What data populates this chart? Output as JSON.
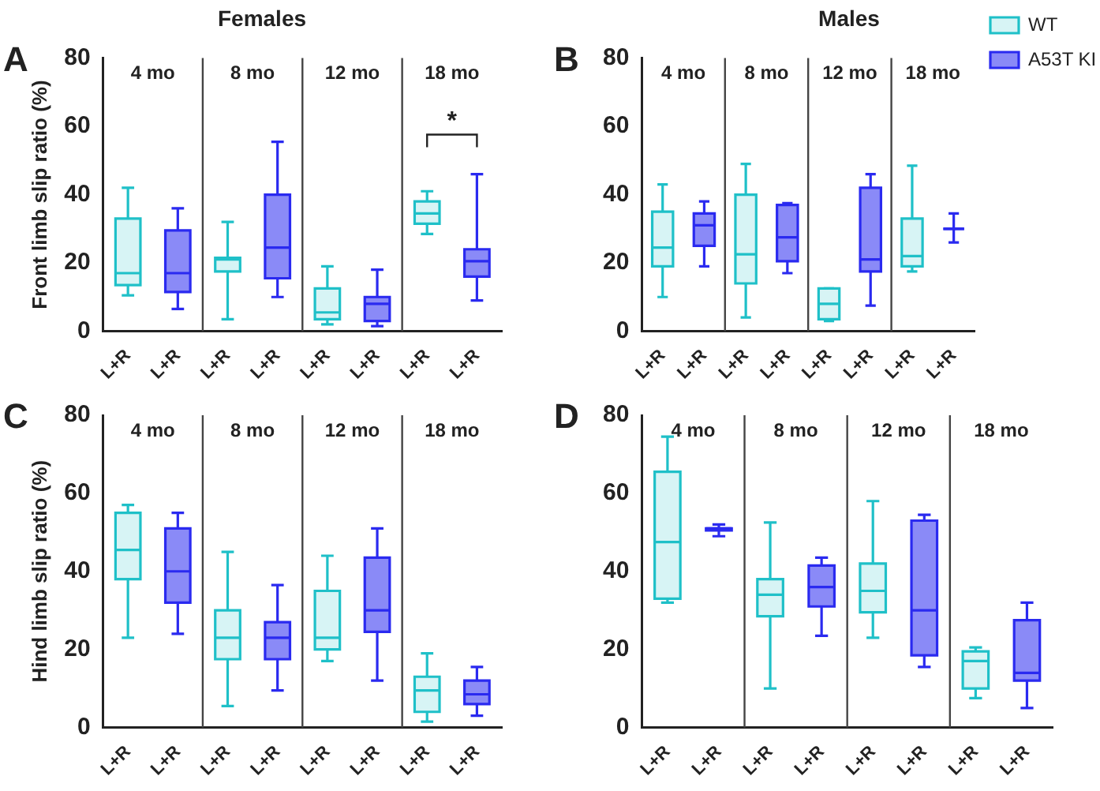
{
  "chart_data": [
    {
      "type": "box",
      "title": "Females",
      "ylabel": "Front limb slip ratio (%)",
      "categories": [
        "L+R",
        "L+R",
        "L+R",
        "L+R",
        "L+R",
        "L+R",
        "L+R",
        "L+R"
      ],
      "ylim": [
        0,
        80
      ],
      "yticks": [
        0,
        20,
        40,
        60,
        80
      ],
      "grid": false,
      "legend": false,
      "annotations": [
        "A",
        "4 mo",
        "8 mo",
        "12 mo",
        "18 mo",
        "*"
      ],
      "series": [
        {
          "color": "#1fc0c8",
          "boxes": [
            {
              "low": 10.5,
              "q1": 13.5,
              "median": 17,
              "q3": 33,
              "high": 42
            },
            null,
            {
              "low": 3.5,
              "q1": 17.5,
              "median": 21,
              "q3": 21.5,
              "high": 32
            },
            null,
            {
              "low": 2,
              "q1": 3.5,
              "median": 5.5,
              "q3": 12.5,
              "high": 19
            },
            null,
            {
              "low": 28.5,
              "q1": 31.5,
              "median": 34.5,
              "q3": 38,
              "high": 41
            },
            null
          ]
        },
        {
          "color": "#2a2af0",
          "boxes": [
            null,
            {
              "low": 6.5,
              "q1": 11.5,
              "median": 17,
              "q3": 29.5,
              "high": 36
            },
            null,
            {
              "low": 10,
              "q1": 15.5,
              "median": 24.5,
              "q3": 40,
              "high": 55.5
            },
            null,
            {
              "low": 1.5,
              "q1": 3,
              "median": 8,
              "q3": 10,
              "high": 18
            },
            null,
            {
              "low": 9,
              "q1": 16,
              "median": 20.5,
              "q3": 24,
              "high": 46
            }
          ]
        }
      ]
    },
    {
      "type": "box",
      "title": "Males",
      "categories": [
        "L+R",
        "L+R",
        "L+R",
        "L+R",
        "L+R",
        "L+R",
        "L+R",
        "L+R"
      ],
      "ylim": [
        0,
        80
      ],
      "yticks": [
        0,
        20,
        40,
        60,
        80
      ],
      "grid": false,
      "legend": "right",
      "annotations": [
        "B",
        "4 mo",
        "8 mo",
        "12 mo",
        "18 mo"
      ],
      "series": [
        {
          "name": "WT",
          "color": "#1fc0c8",
          "boxes": [
            {
              "low": 10,
              "q1": 19,
              "median": 24.5,
              "q3": 35,
              "high": 43
            },
            null,
            {
              "low": 4,
              "q1": 14,
              "median": 22.5,
              "q3": 40,
              "high": 49
            },
            null,
            {
              "low": 3,
              "q1": 3.5,
              "median": 8,
              "q3": 12.5,
              "high": 12.5
            },
            null,
            {
              "low": 17.5,
              "q1": 19,
              "median": 22,
              "q3": 33,
              "high": 48.5
            },
            null
          ]
        },
        {
          "name": "A53T KI",
          "color": "#2a2af0",
          "boxes": [
            null,
            {
              "low": 19,
              "q1": 25,
              "median": 31,
              "q3": 34.5,
              "high": 38
            },
            null,
            {
              "low": 17,
              "q1": 20.5,
              "median": 27.5,
              "q3": 37,
              "high": 37.5
            },
            null,
            {
              "low": 7.5,
              "q1": 17.5,
              "median": 21,
              "q3": 42,
              "high": 46
            },
            null,
            {
              "low": 26,
              "q1": 30,
              "median": 30,
              "q3": 30,
              "high": 34.5
            }
          ]
        }
      ]
    },
    {
      "type": "box",
      "ylabel": "Hind limb slip ratio (%)",
      "categories": [
        "L+R",
        "L+R",
        "L+R",
        "L+R",
        "L+R",
        "L+R",
        "L+R",
        "L+R"
      ],
      "ylim": [
        0,
        80
      ],
      "yticks": [
        0,
        20,
        40,
        60,
        80
      ],
      "grid": false,
      "legend": false,
      "annotations": [
        "C",
        "4 mo",
        "8 mo",
        "12 mo",
        "18 mo"
      ],
      "series": [
        {
          "color": "#1fc0c8",
          "boxes": [
            {
              "low": 23,
              "q1": 38,
              "median": 45.5,
              "q3": 55,
              "high": 57
            },
            null,
            {
              "low": 5.5,
              "q1": 17.5,
              "median": 23,
              "q3": 30,
              "high": 45
            },
            null,
            {
              "low": 17,
              "q1": 20,
              "median": 23,
              "q3": 35,
              "high": 44
            },
            null,
            {
              "low": 1.5,
              "q1": 4,
              "median": 9.5,
              "q3": 13,
              "high": 19
            },
            null
          ]
        },
        {
          "color": "#2a2af0",
          "boxes": [
            null,
            {
              "low": 24,
              "q1": 32,
              "median": 40,
              "q3": 51,
              "high": 55
            },
            null,
            {
              "low": 9.5,
              "q1": 17.5,
              "median": 23,
              "q3": 27,
              "high": 36.5
            },
            null,
            {
              "low": 12,
              "q1": 24.5,
              "median": 30,
              "q3": 43.5,
              "high": 51
            },
            null,
            {
              "low": 3,
              "q1": 6,
              "median": 8.5,
              "q3": 12,
              "high": 15.5
            }
          ]
        }
      ]
    },
    {
      "type": "box",
      "categories": [
        "L+R",
        "L+R",
        "L+R",
        "L+R",
        "L+R",
        "L+R",
        "L+R",
        "L+R"
      ],
      "ylim": [
        0,
        80
      ],
      "yticks": [
        0,
        20,
        40,
        60,
        80
      ],
      "grid": false,
      "legend": false,
      "annotations": [
        "D",
        "4 mo",
        "8 mo",
        "12 mo",
        "18 mo"
      ],
      "series": [
        {
          "color": "#1fc0c8",
          "boxes": [
            {
              "low": 32,
              "q1": 33,
              "median": 47.5,
              "q3": 65.5,
              "high": 74.5
            },
            null,
            {
              "low": 10,
              "q1": 28.5,
              "median": 34,
              "q3": 38,
              "high": 52.5
            },
            null,
            {
              "low": 23,
              "q1": 29.5,
              "median": 35,
              "q3": 42,
              "high": 58
            },
            null,
            {
              "low": 7.5,
              "q1": 10,
              "median": 17,
              "q3": 19.5,
              "high": 20.5
            },
            null
          ]
        },
        {
          "color": "#2a2af0",
          "boxes": [
            null,
            {
              "low": 49,
              "q1": 50.5,
              "median": 51,
              "q3": 51,
              "high": 52
            },
            null,
            {
              "low": 23.5,
              "q1": 31,
              "median": 36,
              "q3": 41.5,
              "high": 43.5
            },
            null,
            {
              "low": 15.5,
              "q1": 18.5,
              "median": 30,
              "q3": 53,
              "high": 54.5
            },
            null,
            {
              "low": 5,
              "q1": 12,
              "median": 14,
              "q3": 27.5,
              "high": 32
            }
          ]
        }
      ]
    }
  ]
}
